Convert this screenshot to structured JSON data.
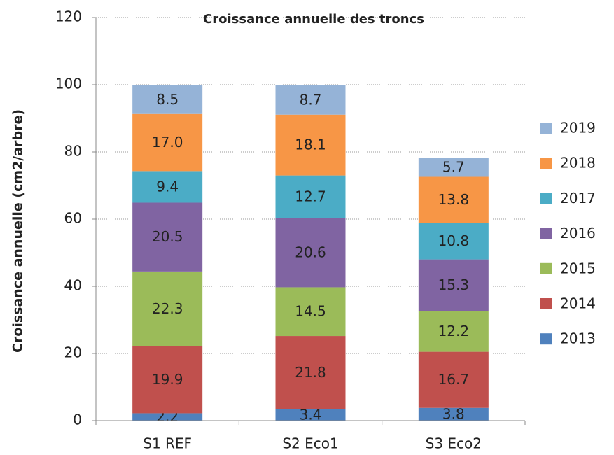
{
  "chart_data": {
    "type": "stacked_bar",
    "title": "Croissance annuelle des troncs",
    "y_label": "Croissance annuelle (cm2/arbre)",
    "categories": [
      "S1 REF",
      "S2 Eco1",
      "S3 Eco2"
    ],
    "series": [
      {
        "name": "2013",
        "color": "#4f81bd",
        "values": [
          2.2,
          3.4,
          3.8
        ],
        "value_labels": [
          "2.2",
          "3.4",
          "3.8"
        ]
      },
      {
        "name": "2014",
        "color": "#c0504d",
        "values": [
          19.9,
          21.8,
          16.7
        ],
        "value_labels": [
          "19.9",
          "21.8",
          "16.7"
        ]
      },
      {
        "name": "2015",
        "color": "#9bbb59",
        "values": [
          22.3,
          14.5,
          12.2
        ],
        "value_labels": [
          "22.3",
          "14.5",
          "12.2"
        ]
      },
      {
        "name": "2016",
        "color": "#8064a2",
        "values": [
          20.5,
          20.6,
          15.3
        ],
        "value_labels": [
          "20.5",
          "20.6",
          "15.3"
        ]
      },
      {
        "name": "2017",
        "color": "#4bacc6",
        "values": [
          9.4,
          12.7,
          10.8
        ],
        "value_labels": [
          "9.4",
          "12.7",
          "10.8"
        ]
      },
      {
        "name": "2018",
        "color": "#f79646",
        "values": [
          17.0,
          18.1,
          13.8
        ],
        "value_labels": [
          "17.0",
          "18.1",
          "13.8"
        ]
      },
      {
        "name": "2019",
        "color": "#95b3d7",
        "values": [
          8.5,
          8.7,
          5.7
        ],
        "value_labels": [
          "8.5",
          "8.7",
          "5.7"
        ]
      }
    ],
    "ylim": [
      0,
      120
    ],
    "yticks": [
      0,
      20,
      40,
      60,
      80,
      100,
      120
    ],
    "grid": true,
    "legend": "right"
  }
}
